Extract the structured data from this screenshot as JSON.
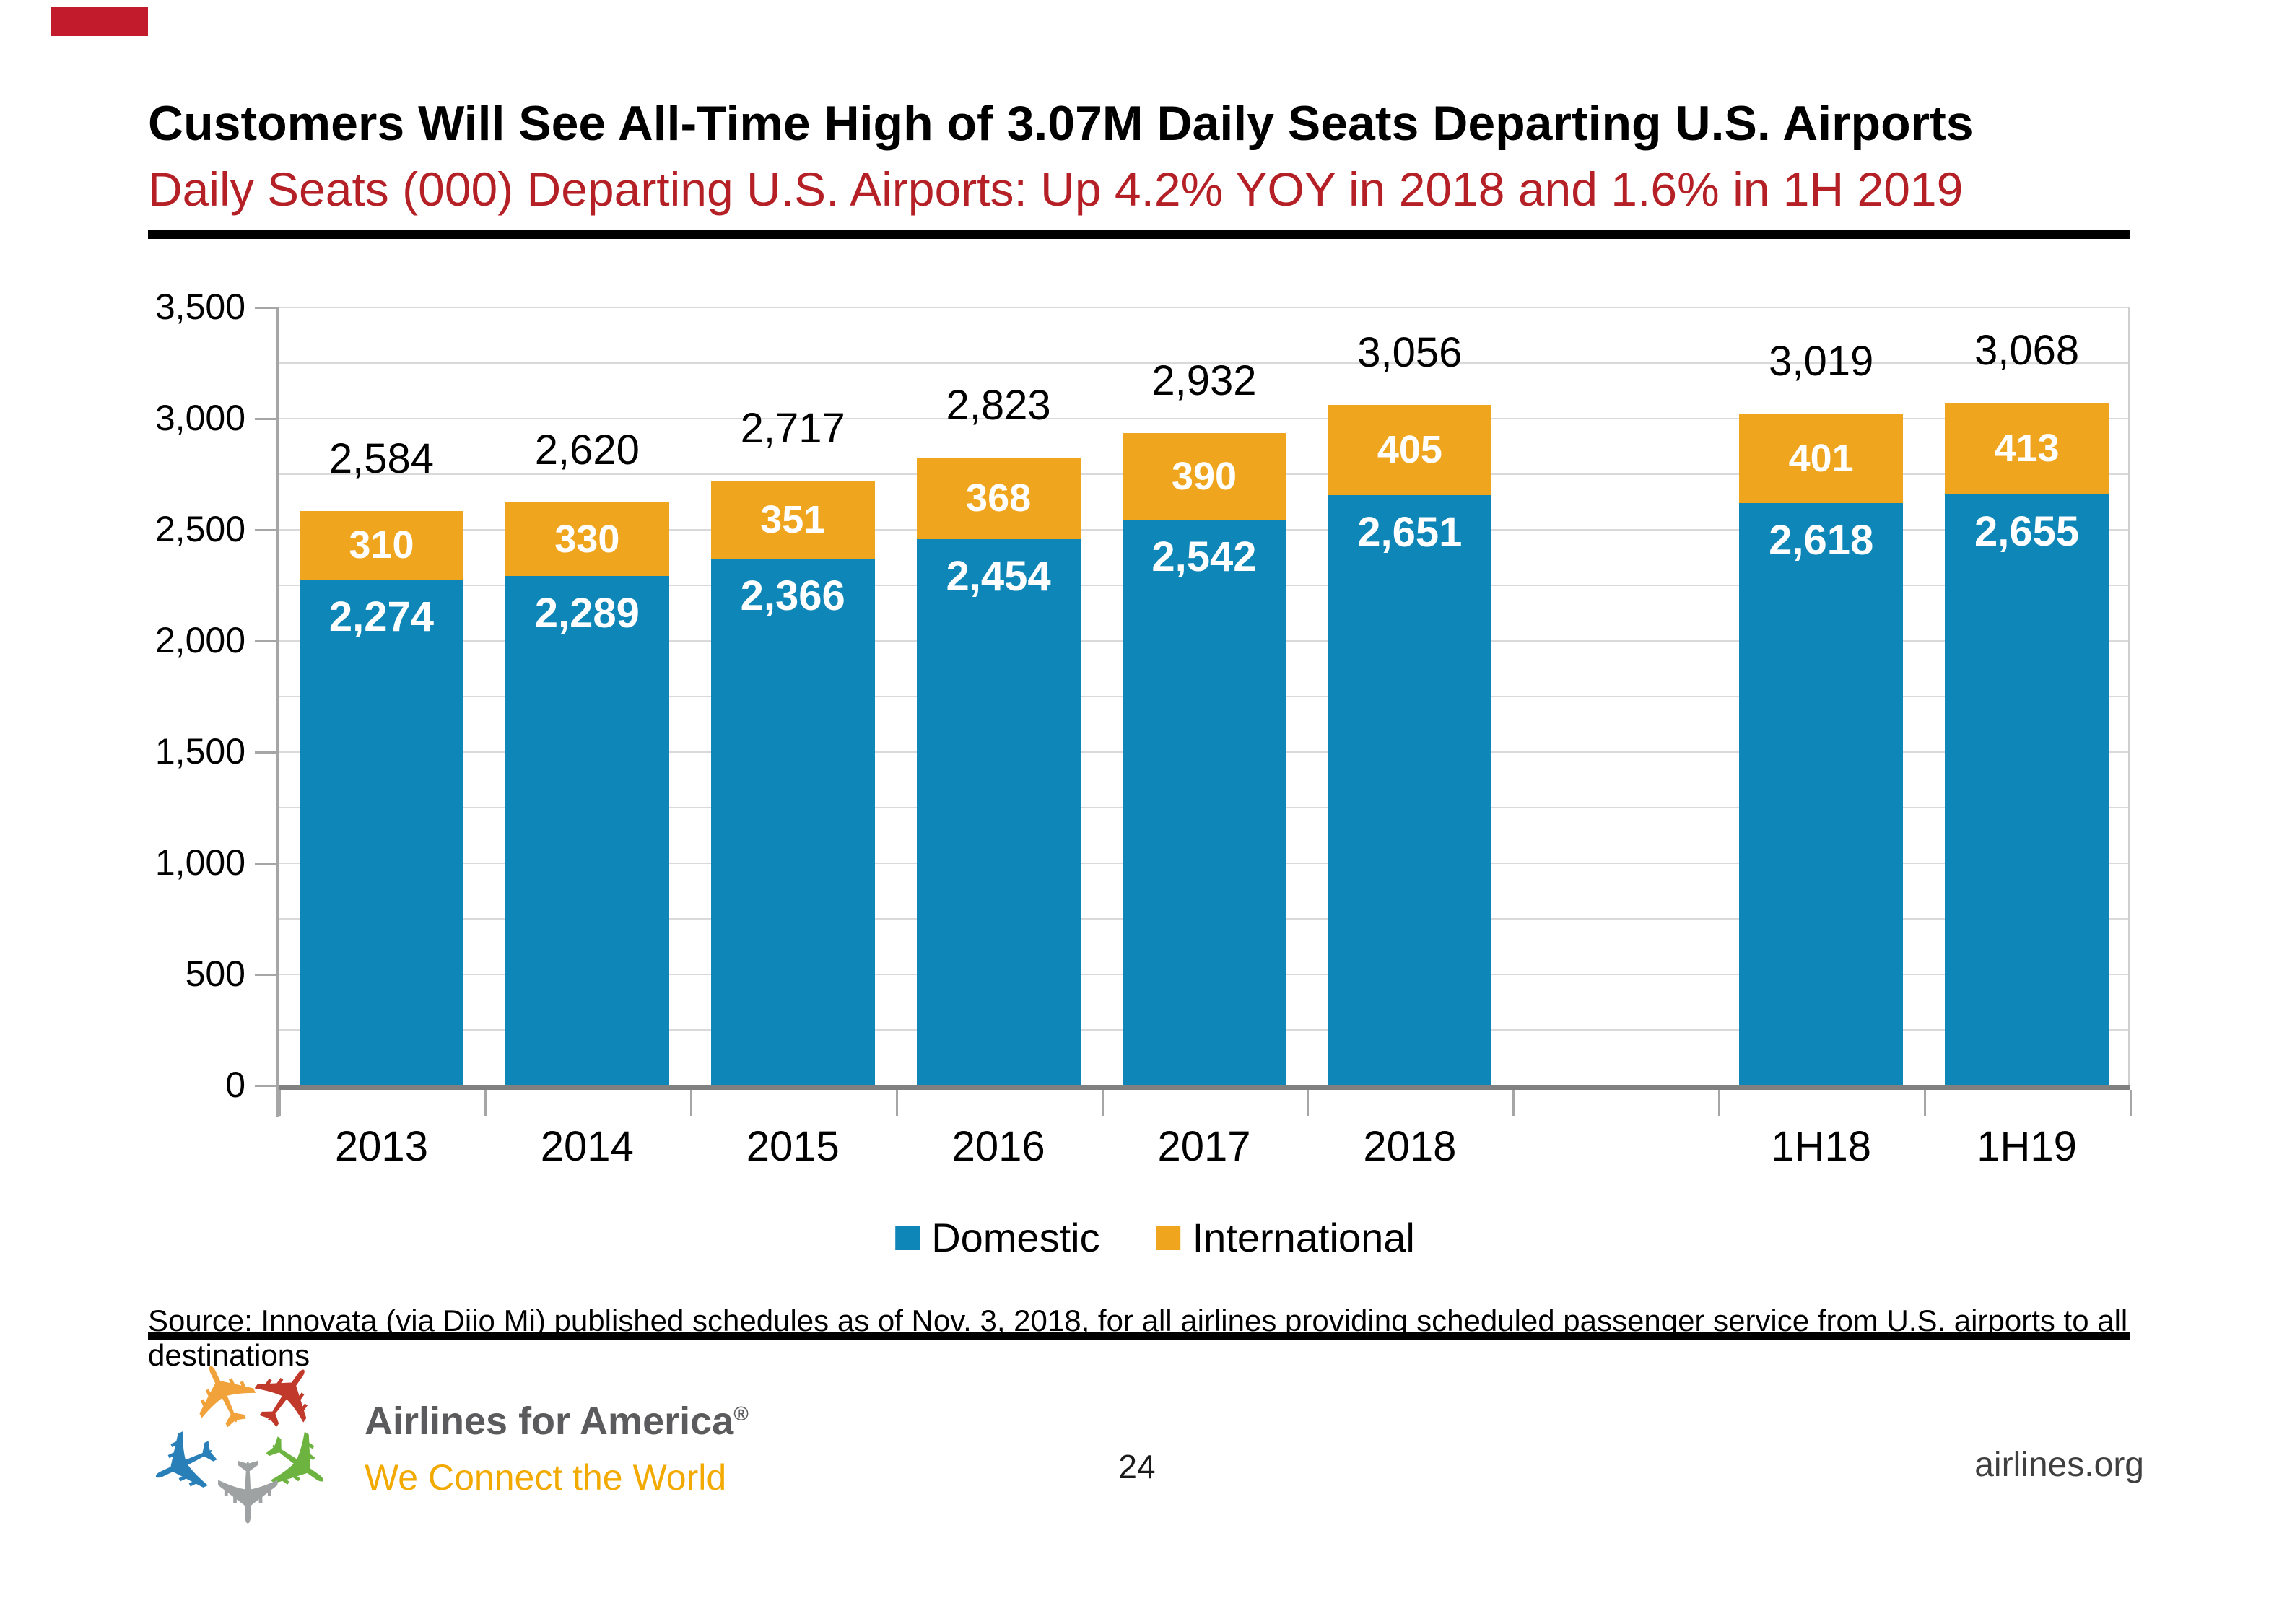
{
  "slide": {
    "title": "Customers Will See All-Time High of 3.07M Daily Seats Departing U.S. Airports",
    "subtitle": "Daily Seats (000) Departing U.S. Airports: Up 4.2% YOY in 2018 and 1.6% in 1H 2019",
    "source_note": "Source: Innovata (via Diio Mi) published schedules as of Nov. 3, 2018, for all airlines providing scheduled passenger service from U.S. airports to all destinations",
    "accent_color": "#C21B2C",
    "subtitle_color": "#B42025"
  },
  "footer": {
    "brand": "Airlines for America",
    "registered_mark": "®",
    "tagline": "We Connect the World",
    "page_number": "24",
    "website": "airlines.org",
    "brand_color": "#5B5B5E",
    "tagline_color": "#F2A900",
    "logo_plane_colors": [
      "#F2A23A",
      "#C0392B",
      "#6CB33F",
      "#9EA2A2",
      "#2980B9"
    ]
  },
  "chart_data": {
    "type": "bar",
    "stacked": true,
    "title": "Daily Seats (000) Departing U.S. Airports",
    "categories": [
      "2013",
      "2014",
      "2015",
      "2016",
      "2017",
      "2018",
      "",
      "1H18",
      "1H19"
    ],
    "series": [
      {
        "name": "Domestic",
        "color": "#0F86B8",
        "values": [
          2274,
          2289,
          2366,
          2454,
          2542,
          2651,
          null,
          2618,
          2655
        ]
      },
      {
        "name": "International",
        "color": "#F0A51E",
        "values": [
          310,
          330,
          351,
          368,
          390,
          405,
          null,
          401,
          413
        ]
      }
    ],
    "totals": [
      2584,
      2620,
      2717,
      2823,
      2932,
      3056,
      null,
      3019,
      3068
    ],
    "y_axis": {
      "min": 0,
      "max": 3500,
      "label_step": 500,
      "gridline_step": 250,
      "tick_labels": [
        "0",
        "500",
        "1,000",
        "1,500",
        "2,000",
        "2,500",
        "3,000",
        "3,500"
      ]
    },
    "grid": true,
    "legend_position": "bottom"
  }
}
